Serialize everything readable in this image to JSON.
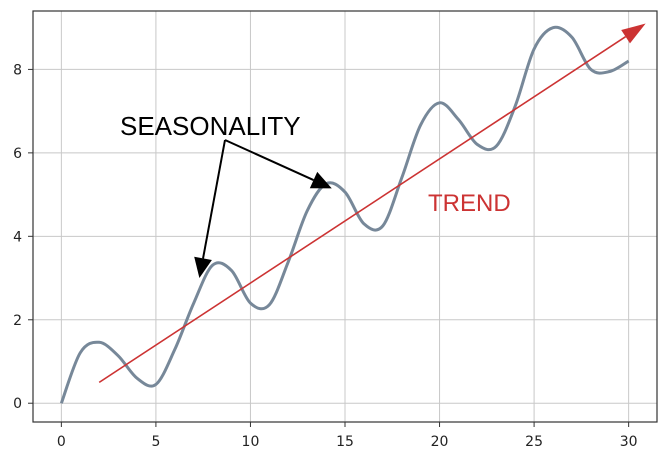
{
  "chart_data": {
    "type": "line",
    "title": "",
    "xlabel": "",
    "ylabel": "",
    "xlim": [
      -1.5,
      31.5
    ],
    "ylim": [
      -0.45,
      9.4
    ],
    "xticks": [
      0,
      5,
      10,
      15,
      20,
      25,
      30
    ],
    "yticks": [
      0,
      2,
      4,
      6,
      8
    ],
    "grid": true,
    "series": [
      {
        "color": "#778899",
        "x": [
          0,
          1,
          2,
          3,
          4,
          5,
          6,
          7,
          8,
          9,
          10,
          11,
          12,
          13,
          14,
          15,
          16,
          17,
          18,
          19,
          20,
          21,
          22,
          23,
          24,
          25,
          26,
          27,
          28,
          29,
          30
        ],
        "y": [
          0.0,
          1.21,
          1.46,
          1.14,
          0.6,
          0.45,
          1.29,
          2.4,
          3.31,
          3.18,
          2.4,
          2.36,
          3.39,
          4.61,
          5.26,
          5.06,
          4.3,
          4.25,
          5.4,
          6.67,
          7.2,
          6.8,
          6.2,
          6.16,
          7.12,
          8.49,
          9.0,
          8.77,
          8.0,
          7.95,
          8.2
        ]
      }
    ],
    "annotations": [
      {
        "text": "TREND",
        "color": "#cc3333",
        "arrow_from": [
          2,
          0.5
        ],
        "arrow_to": [
          30.9,
          9.1
        ]
      },
      {
        "text": "SEASONALITY",
        "color": "#000000",
        "arrows_to": [
          [
            7.3,
            3.0
          ],
          [
            14.3,
            5.15
          ]
        ]
      }
    ]
  }
}
